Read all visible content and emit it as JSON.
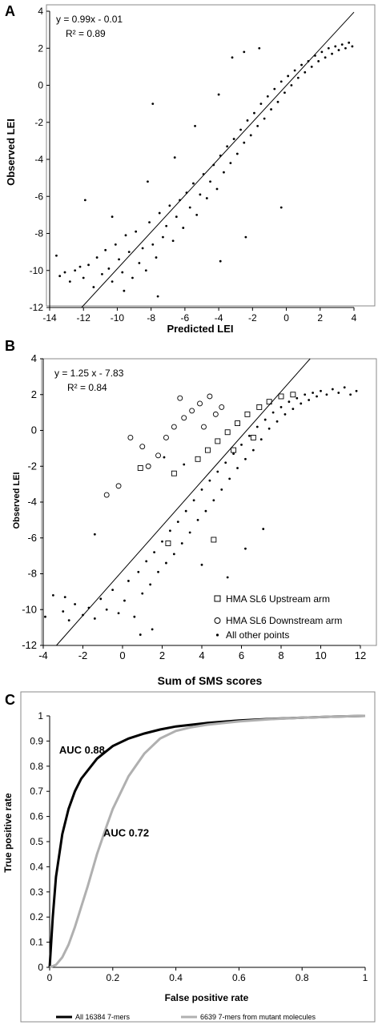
{
  "panels": [
    {
      "letter": "A"
    },
    {
      "letter": "B"
    },
    {
      "letter": "C"
    }
  ],
  "chart_data": [
    {
      "panel": "A",
      "type": "scatter",
      "xlabel": "Predicted LEI",
      "ylabel": "Observed LEI",
      "xlim": [
        -14,
        4
      ],
      "ylim": [
        -12,
        4
      ],
      "xticks": [
        -14,
        -12,
        -10,
        -8,
        -6,
        -4,
        -2,
        0,
        2,
        4
      ],
      "yticks": [
        -12,
        -10,
        -8,
        -6,
        -4,
        -2,
        0,
        2,
        4
      ],
      "grid": false,
      "equation": "y = 0.99x - 0.01",
      "r2": "R² = 0.89",
      "fit_line": {
        "slope": 0.99,
        "intercept": -0.01
      },
      "series": [
        {
          "marker": "dot",
          "points": [
            [
              -13.6,
              -9.2
            ],
            [
              -13.4,
              -10.3
            ],
            [
              -13.1,
              -10.1
            ],
            [
              -12.8,
              -10.6
            ],
            [
              -12.5,
              -10.0
            ],
            [
              -12.2,
              -9.8
            ],
            [
              -12.0,
              -10.4
            ],
            [
              -11.7,
              -9.7
            ],
            [
              -11.4,
              -10.9
            ],
            [
              -11.2,
              -9.3
            ],
            [
              -10.9,
              -10.2
            ],
            [
              -10.7,
              -8.9
            ],
            [
              -10.5,
              -9.9
            ],
            [
              -10.3,
              -10.6
            ],
            [
              -10.1,
              -8.6
            ],
            [
              -9.9,
              -9.4
            ],
            [
              -9.7,
              -10.1
            ],
            [
              -9.5,
              -8.1
            ],
            [
              -9.3,
              -9.0
            ],
            [
              -9.1,
              -10.4
            ],
            [
              -8.9,
              -7.9
            ],
            [
              -8.7,
              -9.6
            ],
            [
              -8.5,
              -8.8
            ],
            [
              -8.3,
              -10.0
            ],
            [
              -8.1,
              -7.4
            ],
            [
              -7.9,
              -8.6
            ],
            [
              -7.7,
              -9.3
            ],
            [
              -7.5,
              -6.9
            ],
            [
              -7.3,
              -8.2
            ],
            [
              -7.1,
              -7.6
            ],
            [
              -6.9,
              -6.5
            ],
            [
              -6.7,
              -8.4
            ],
            [
              -6.5,
              -7.1
            ],
            [
              -6.3,
              -6.2
            ],
            [
              -6.1,
              -7.7
            ],
            [
              -5.9,
              -5.8
            ],
            [
              -5.7,
              -6.6
            ],
            [
              -5.5,
              -5.3
            ],
            [
              -5.3,
              -7.0
            ],
            [
              -5.1,
              -5.9
            ],
            [
              -4.9,
              -4.8
            ],
            [
              -4.7,
              -6.1
            ],
            [
              -4.5,
              -5.2
            ],
            [
              -4.3,
              -4.3
            ],
            [
              -4.1,
              -5.6
            ],
            [
              -3.9,
              -3.8
            ],
            [
              -3.7,
              -4.7
            ],
            [
              -3.5,
              -3.3
            ],
            [
              -3.3,
              -4.2
            ],
            [
              -3.1,
              -2.9
            ],
            [
              -2.9,
              -3.7
            ],
            [
              -2.7,
              -2.4
            ],
            [
              -2.5,
              -3.1
            ],
            [
              -2.3,
              -1.9
            ],
            [
              -2.1,
              -2.7
            ],
            [
              -1.9,
              -1.5
            ],
            [
              -1.7,
              -2.2
            ],
            [
              -1.5,
              -1.0
            ],
            [
              -1.3,
              -1.8
            ],
            [
              -1.1,
              -0.6
            ],
            [
              -0.9,
              -1.3
            ],
            [
              -0.7,
              -0.2
            ],
            [
              -0.5,
              -0.9
            ],
            [
              -0.3,
              0.2
            ],
            [
              -0.1,
              -0.4
            ],
            [
              0.1,
              0.5
            ],
            [
              0.3,
              0.0
            ],
            [
              0.5,
              0.8
            ],
            [
              0.7,
              0.4
            ],
            [
              0.9,
              1.1
            ],
            [
              1.1,
              0.7
            ],
            [
              1.3,
              1.3
            ],
            [
              1.5,
              1.0
            ],
            [
              1.7,
              1.6
            ],
            [
              1.9,
              1.3
            ],
            [
              2.1,
              1.8
            ],
            [
              2.3,
              1.5
            ],
            [
              2.5,
              2.0
            ],
            [
              2.7,
              1.7
            ],
            [
              2.9,
              2.1
            ],
            [
              3.1,
              1.9
            ],
            [
              3.3,
              2.2
            ],
            [
              3.5,
              2.0
            ],
            [
              3.7,
              2.3
            ],
            [
              3.9,
              2.1
            ],
            [
              -7.9,
              -1.0
            ],
            [
              -4.0,
              -0.5
            ],
            [
              -3.2,
              1.5
            ],
            [
              -2.5,
              1.8
            ],
            [
              -1.6,
              2.0
            ],
            [
              -5.4,
              -2.2
            ],
            [
              -6.6,
              -3.9
            ],
            [
              -8.2,
              -5.2
            ],
            [
              -0.3,
              -6.6
            ],
            [
              -3.9,
              -9.5
            ],
            [
              -2.4,
              -8.2
            ],
            [
              -9.6,
              -11.1
            ],
            [
              -7.6,
              -11.4
            ],
            [
              -11.9,
              -6.2
            ],
            [
              -10.3,
              -7.1
            ]
          ]
        }
      ]
    },
    {
      "panel": "B",
      "type": "scatter",
      "xlabel": "Sum of SMS scores",
      "ylabel": "Observed LEI",
      "xlim": [
        -4,
        12
      ],
      "ylim": [
        -12,
        4
      ],
      "xticks": [
        -4,
        -2,
        0,
        2,
        4,
        6,
        8,
        10,
        12
      ],
      "yticks": [
        -12,
        -10,
        -8,
        -6,
        -4,
        -2,
        0,
        2,
        4
      ],
      "grid": false,
      "equation": "y = 1.25 x - 7.83",
      "r2": "R² = 0.84",
      "fit_line": {
        "slope": 1.25,
        "intercept": -7.83
      },
      "legend_placement": "bottom-right",
      "legend": [
        {
          "marker": "square",
          "label": "HMA SL6 Upstream arm"
        },
        {
          "marker": "circle",
          "label": "HMA SL6 Downstream arm"
        },
        {
          "marker": "dot",
          "label": "All other points"
        }
      ],
      "series": [
        {
          "name": "All other points",
          "marker": "dot",
          "points": [
            [
              -3.9,
              -10.4
            ],
            [
              -3.5,
              -9.2
            ],
            [
              -3.0,
              -10.1
            ],
            [
              -2.7,
              -10.6
            ],
            [
              -2.4,
              -9.7
            ],
            [
              -2.0,
              -10.3
            ],
            [
              -1.7,
              -9.9
            ],
            [
              -1.4,
              -10.5
            ],
            [
              -1.1,
              -9.4
            ],
            [
              -0.8,
              -10.0
            ],
            [
              -0.5,
              -8.9
            ],
            [
              -0.2,
              -10.2
            ],
            [
              0.1,
              -9.5
            ],
            [
              0.3,
              -8.4
            ],
            [
              0.6,
              -10.4
            ],
            [
              0.8,
              -7.9
            ],
            [
              1.0,
              -9.1
            ],
            [
              1.2,
              -7.3
            ],
            [
              1.4,
              -8.6
            ],
            [
              1.6,
              -6.8
            ],
            [
              1.8,
              -7.9
            ],
            [
              2.0,
              -6.2
            ],
            [
              2.2,
              -7.4
            ],
            [
              2.4,
              -5.6
            ],
            [
              2.6,
              -6.9
            ],
            [
              2.8,
              -5.1
            ],
            [
              3.0,
              -6.3
            ],
            [
              3.2,
              -4.5
            ],
            [
              3.4,
              -5.7
            ],
            [
              3.6,
              -3.9
            ],
            [
              3.8,
              -5.0
            ],
            [
              4.0,
              -3.3
            ],
            [
              4.2,
              -4.5
            ],
            [
              4.4,
              -2.8
            ],
            [
              4.6,
              -3.9
            ],
            [
              4.8,
              -2.3
            ],
            [
              5.0,
              -3.3
            ],
            [
              5.2,
              -1.8
            ],
            [
              5.4,
              -2.7
            ],
            [
              5.6,
              -1.3
            ],
            [
              5.8,
              -2.1
            ],
            [
              6.0,
              -0.8
            ],
            [
              6.2,
              -1.6
            ],
            [
              6.4,
              -0.3
            ],
            [
              6.6,
              -1.1
            ],
            [
              6.8,
              0.2
            ],
            [
              7.0,
              -0.5
            ],
            [
              7.2,
              0.6
            ],
            [
              7.4,
              0.1
            ],
            [
              7.6,
              1.0
            ],
            [
              7.8,
              0.5
            ],
            [
              8.0,
              1.3
            ],
            [
              8.2,
              0.9
            ],
            [
              8.4,
              1.6
            ],
            [
              8.6,
              1.2
            ],
            [
              8.8,
              1.8
            ],
            [
              9.0,
              1.5
            ],
            [
              9.2,
              2.0
            ],
            [
              9.4,
              1.7
            ],
            [
              9.6,
              2.1
            ],
            [
              9.8,
              1.9
            ],
            [
              10.0,
              2.2
            ],
            [
              10.3,
              2.0
            ],
            [
              10.6,
              2.3
            ],
            [
              10.9,
              2.1
            ],
            [
              11.2,
              2.4
            ],
            [
              11.5,
              2.0
            ],
            [
              11.8,
              2.2
            ],
            [
              2.1,
              -1.5
            ],
            [
              3.1,
              -1.9
            ],
            [
              4.0,
              -7.5
            ],
            [
              5.3,
              -8.2
            ],
            [
              6.2,
              -6.6
            ],
            [
              7.1,
              -5.5
            ],
            [
              1.5,
              -11.1
            ],
            [
              0.9,
              -11.4
            ],
            [
              -2.9,
              -9.3
            ],
            [
              -1.4,
              -5.8
            ]
          ]
        },
        {
          "name": "HMA SL6 Upstream arm",
          "marker": "square",
          "points": [
            [
              0.9,
              -2.1
            ],
            [
              2.6,
              -2.4
            ],
            [
              3.8,
              -1.6
            ],
            [
              4.3,
              -1.1
            ],
            [
              4.8,
              -0.6
            ],
            [
              5.3,
              -0.1
            ],
            [
              5.8,
              0.4
            ],
            [
              6.3,
              0.9
            ],
            [
              6.9,
              1.3
            ],
            [
              7.4,
              1.6
            ],
            [
              8.0,
              1.9
            ],
            [
              8.6,
              2.0
            ],
            [
              5.6,
              -1.1
            ],
            [
              6.6,
              -0.4
            ],
            [
              4.6,
              -6.1
            ],
            [
              2.3,
              -6.3
            ]
          ]
        },
        {
          "name": "HMA SL6 Downstream arm",
          "marker": "circle",
          "points": [
            [
              -0.8,
              -3.6
            ],
            [
              -0.2,
              -3.1
            ],
            [
              0.4,
              -0.4
            ],
            [
              1.0,
              -0.9
            ],
            [
              1.3,
              -2.0
            ],
            [
              1.8,
              -1.4
            ],
            [
              2.2,
              -0.4
            ],
            [
              2.6,
              0.2
            ],
            [
              3.1,
              0.7
            ],
            [
              3.5,
              1.1
            ],
            [
              3.9,
              1.5
            ],
            [
              4.4,
              1.9
            ],
            [
              5.0,
              1.3
            ],
            [
              4.7,
              0.9
            ],
            [
              2.9,
              1.8
            ],
            [
              4.1,
              0.2
            ]
          ]
        }
      ]
    },
    {
      "panel": "C",
      "type": "line",
      "xlabel": "False positive rate",
      "ylabel": "True positive rate",
      "xlim": [
        0,
        1
      ],
      "ylim": [
        0,
        1
      ],
      "xticks": [
        0,
        0.2,
        0.4,
        0.6,
        0.8,
        1
      ],
      "yticks": [
        0,
        0.1,
        0.2,
        0.3,
        0.4,
        0.5,
        0.6,
        0.7,
        0.8,
        0.9,
        1
      ],
      "grid": false,
      "legend_placement": "bottom",
      "annotations": [
        {
          "text": "AUC 0.88",
          "x": 0.03,
          "y": 0.85
        },
        {
          "text": "AUC 0.72",
          "x": 0.17,
          "y": 0.52
        }
      ],
      "series": [
        {
          "name": "All 16384 7-mers",
          "color": "#000000",
          "x": [
            0,
            0.01,
            0.02,
            0.04,
            0.06,
            0.08,
            0.1,
            0.15,
            0.2,
            0.25,
            0.3,
            0.35,
            0.4,
            0.5,
            0.6,
            0.7,
            0.8,
            0.9,
            1
          ],
          "y": [
            0,
            0.2,
            0.36,
            0.53,
            0.63,
            0.7,
            0.75,
            0.83,
            0.88,
            0.91,
            0.93,
            0.946,
            0.958,
            0.972,
            0.982,
            0.988,
            0.993,
            0.997,
            1
          ]
        },
        {
          "name": "6639 7-mers from mutant molecules",
          "color": "#b0b0b0",
          "x": [
            0,
            0.02,
            0.04,
            0.06,
            0.08,
            0.1,
            0.12,
            0.15,
            0.18,
            0.2,
            0.25,
            0.3,
            0.35,
            0.4,
            0.45,
            0.5,
            0.6,
            0.7,
            0.8,
            0.9,
            1
          ],
          "y": [
            0,
            0.01,
            0.04,
            0.09,
            0.16,
            0.24,
            0.32,
            0.45,
            0.56,
            0.63,
            0.76,
            0.85,
            0.91,
            0.94,
            0.955,
            0.965,
            0.978,
            0.987,
            0.993,
            0.997,
            1
          ]
        }
      ]
    }
  ]
}
